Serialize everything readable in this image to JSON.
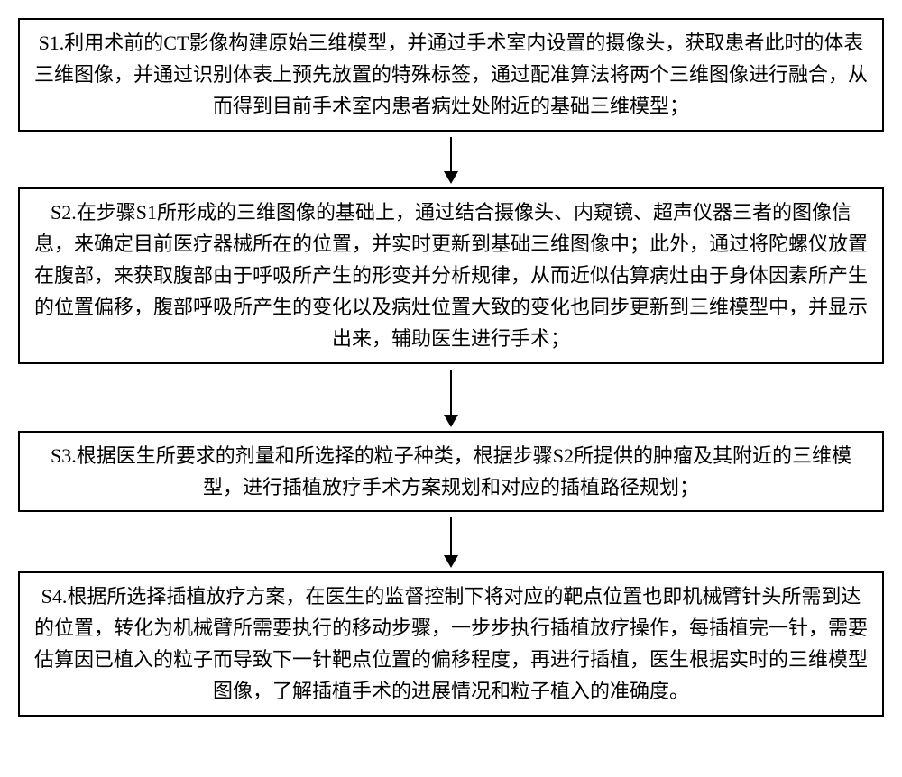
{
  "flowchart": {
    "type": "flowchart",
    "direction": "vertical",
    "background_color": "#ffffff",
    "box_border_color": "#000000",
    "box_border_width": 2,
    "text_color": "#000000",
    "font_size": 22,
    "font_family": "SimSun",
    "line_height": 1.6,
    "container_width": 960,
    "arrow_color": "#000000",
    "arrow_line_width": 2,
    "arrow_head_width": 16,
    "arrow_head_height": 14,
    "steps": [
      {
        "id": "S1",
        "text": "S1.利用术前的CT影像构建原始三维模型，并通过手术室内设置的摄像头，获取患者此时的体表三维图像，并通过识别体表上预先放置的特殊标签，通过配准算法将两个三维图像进行融合，从而得到目前手术室内患者病灶处附近的基础三维模型；",
        "arrow_gap": 38
      },
      {
        "id": "S2",
        "text": "S2.在步骤S1所形成的三维图像的基础上，通过结合摄像头、内窥镜、超声仪器三者的图像信息，来确定目前医疗器械所在的位置，并实时更新到基础三维图像中；此外，通过将陀螺仪放置在腹部，来获取腹部由于呼吸所产生的形变并分析规律，从而近似估算病灶由于身体因素所产生的位置偏移，腹部呼吸所产生的变化以及病灶位置大致的变化也同步更新到三维模型中，并显示出来，辅助医生进行手术；",
        "arrow_gap": 50
      },
      {
        "id": "S3",
        "text": "S3.根据医生所要求的剂量和所选择的粒子种类，根据步骤S2所提供的肿瘤及其附近的三维模型，进行插植放疗手术方案规划和对应的插植路径规划；",
        "arrow_gap": 42
      },
      {
        "id": "S4",
        "text": "S4.根据所选择插植放疗方案，在医生的监督控制下将对应的靶点位置也即机械臂针头所需到达的位置，转化为机械臂所需要执行的移动步骤，一步步执行插植放疗操作，每插植完一针，需要估算因已植入的粒子而导致下一针靶点位置的偏移程度，再进行插植，医生根据实时的三维模型图像，了解插植手术的进展情况和粒子植入的准确度。",
        "arrow_gap": 0
      }
    ]
  }
}
